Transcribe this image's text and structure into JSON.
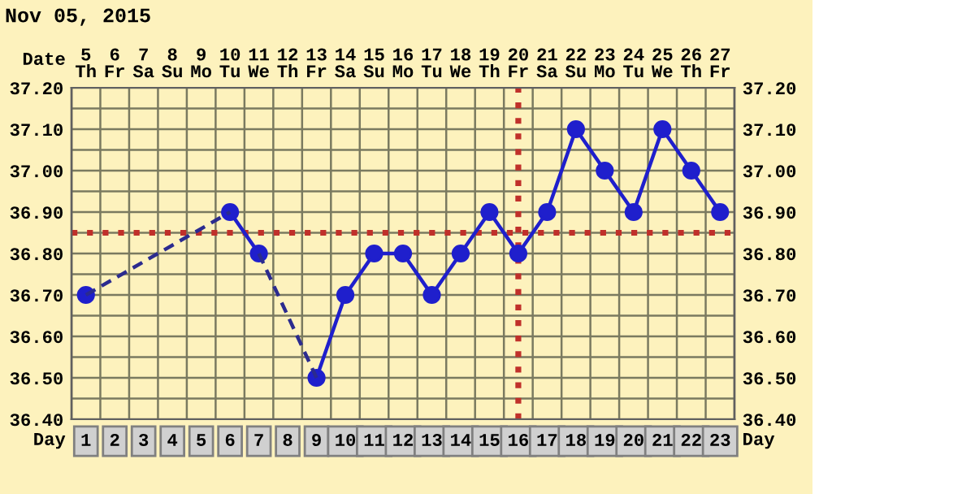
{
  "chart_data": {
    "type": "line",
    "title": "Nov 05, 2015",
    "xlabel": "Day",
    "x2label": "Date",
    "xlim": [
      0.5,
      23.5
    ],
    "xticks": [
      1,
      2,
      3,
      4,
      5,
      6,
      7,
      8,
      9,
      10,
      11,
      12,
      13,
      14,
      15,
      16,
      17,
      18,
      19,
      20,
      21,
      22,
      23
    ],
    "x2lim": [
      "2015-11-04T12:00",
      "2015-11-27T12:00"
    ],
    "x2ticks": [
      {
        "value": "2015-11-05",
        "label": "5\nTh"
      },
      {
        "value": "2015-11-06",
        "label": "6\nFr"
      },
      {
        "value": "2015-11-07",
        "label": "7\nSa"
      },
      {
        "value": "2015-11-08",
        "label": "8\nSu"
      },
      {
        "value": "2015-11-09",
        "label": "9\nMo"
      },
      {
        "value": "2015-11-10",
        "label": "10\nTu"
      },
      {
        "value": "2015-11-11",
        "label": "11\nWe"
      },
      {
        "value": "2015-11-12",
        "label": "12\nTh"
      },
      {
        "value": "2015-11-13",
        "label": "13\nFr"
      },
      {
        "value": "2015-11-14",
        "label": "14\nSa"
      },
      {
        "value": "2015-11-15",
        "label": "15\nSu"
      },
      {
        "value": "2015-11-16",
        "label": "16\nMo"
      },
      {
        "value": "2015-11-17",
        "label": "17\nTu"
      },
      {
        "value": "2015-11-18",
        "label": "18\nWe"
      },
      {
        "value": "2015-11-19",
        "label": "19\nTh"
      },
      {
        "value": "2015-11-20",
        "label": "20\nFr"
      },
      {
        "value": "2015-11-21",
        "label": "21\nSa"
      },
      {
        "value": "2015-11-22",
        "label": "22\nSu"
      },
      {
        "value": "2015-11-23",
        "label": "23\nMo"
      },
      {
        "value": "2015-11-24",
        "label": "24\nTu"
      },
      {
        "value": "2015-11-25",
        "label": "25\nWe"
      },
      {
        "value": "2015-11-26",
        "label": "26\nTh"
      },
      {
        "value": "2015-11-27",
        "label": "27\nFr"
      }
    ],
    "ylim": [
      36.4,
      37.2
    ],
    "yticks": [
      {
        "value": 36.4,
        "label": "36.40"
      },
      {
        "value": 36.5,
        "label": "36.50"
      },
      {
        "value": 36.6,
        "label": "36.60"
      },
      {
        "value": 36.7,
        "label": "36.70"
      },
      {
        "value": 36.8,
        "label": "36.80"
      },
      {
        "value": 36.9,
        "label": "36.90"
      },
      {
        "value": 37.0,
        "label": "37.00"
      },
      {
        "value": 37.1,
        "label": "37.10"
      },
      {
        "value": 37.2,
        "label": "37.20"
      }
    ],
    "y2lim": [
      36.4,
      37.2
    ],
    "y2ticks": [
      {
        "value": 36.4,
        "label": "36.40"
      },
      {
        "value": 36.5,
        "label": "36.50"
      },
      {
        "value": 36.6,
        "label": "36.60"
      },
      {
        "value": 36.7,
        "label": "36.70"
      },
      {
        "value": 36.8,
        "label": "36.80"
      },
      {
        "value": 36.9,
        "label": "36.90"
      },
      {
        "value": 37.0,
        "label": "37.00"
      },
      {
        "value": 37.1,
        "label": "37.10"
      },
      {
        "value": 37.2,
        "label": "37.20"
      }
    ],
    "grid": true,
    "series": [
      {
        "color": "#1f1fcc",
        "marker": "circle",
        "line_style": "solid",
        "x": [
          1,
          2,
          3,
          4,
          5,
          6,
          7,
          8,
          9,
          10,
          11,
          12,
          13,
          14,
          15,
          16,
          17,
          18,
          19,
          20,
          21,
          22,
          23
        ],
        "values": [
          36.7,
          null,
          null,
          null,
          null,
          36.9,
          36.8,
          null,
          36.5,
          36.7,
          36.8,
          36.8,
          36.7,
          36.8,
          36.9,
          36.8,
          36.9,
          37.1,
          37.0,
          36.9,
          37.1,
          37.0,
          36.9
        ]
      },
      {
        "color": "#2b2b8f",
        "marker": "none",
        "line_style": "dashed",
        "x": [
          1,
          6
        ],
        "values": [
          36.7,
          36.9
        ]
      },
      {
        "color": "#2b2b8f",
        "marker": "none",
        "line_style": "dashed",
        "x": [
          7,
          9
        ],
        "values": [
          36.8,
          36.5
        ]
      }
    ],
    "ref_lines": [
      {
        "axis": "y",
        "value": 36.85,
        "color": "#c0302a",
        "line_style": "dotted"
      },
      {
        "axis": "x",
        "value": 16,
        "color": "#c0302a",
        "line_style": "dotted"
      }
    ]
  }
}
